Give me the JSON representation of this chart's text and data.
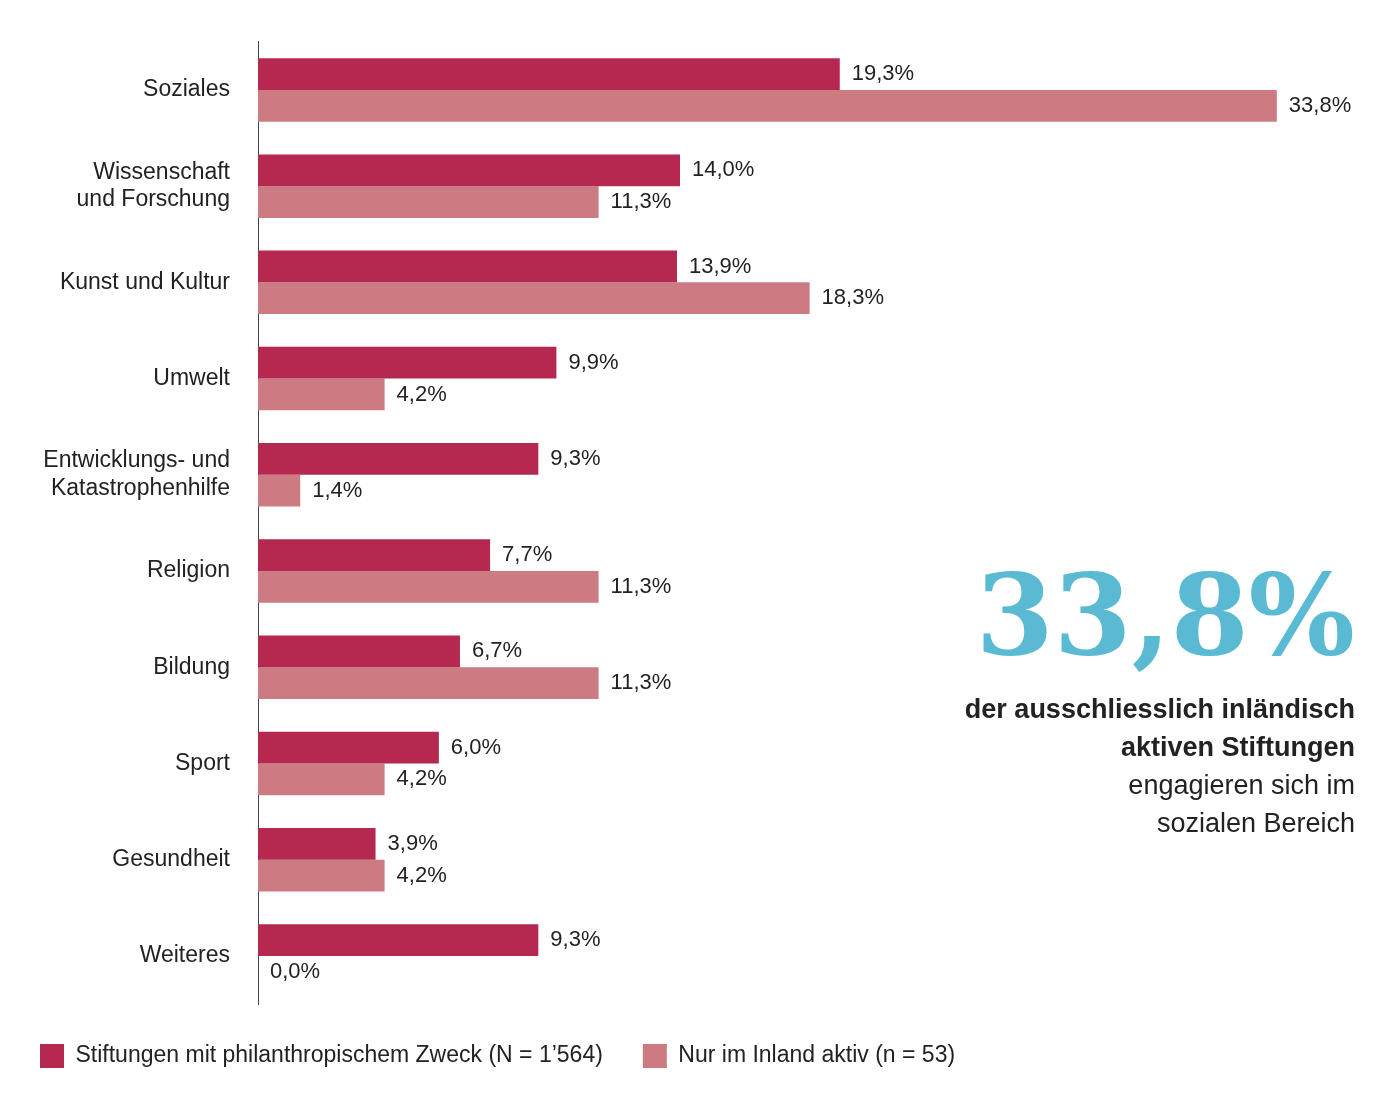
{
  "chart_data": {
    "type": "bar",
    "orientation": "horizontal",
    "categories": [
      "Soziales",
      "Wissenschaft\nund Forschung",
      "Kunst und Kultur",
      "Umwelt",
      "Entwicklungs- und\nKatastrophenhilfe",
      "Religion",
      "Bildung",
      "Sport",
      "Gesundheit",
      "Weiteres"
    ],
    "series": [
      {
        "name": "Stiftungen mit philanthropischem Zweck (N = 1’564)",
        "color": "#b5284f",
        "values": [
          19.3,
          14.0,
          13.9,
          9.9,
          9.3,
          7.7,
          6.7,
          6.0,
          3.9,
          9.3
        ],
        "value_labels": [
          "19,3%",
          "14,0%",
          "13,9%",
          "9,9%",
          "9,3%",
          "7,7%",
          "6,7%",
          "6,0%",
          "3,9%",
          "9,3%"
        ]
      },
      {
        "name": "Nur im Inland aktiv (n = 53)",
        "color": "#cd7b82",
        "values": [
          33.8,
          11.3,
          18.3,
          4.2,
          1.4,
          11.3,
          11.3,
          4.2,
          4.2,
          0.0
        ],
        "value_labels": [
          "33,8%",
          "11,3%",
          "18,3%",
          "4,2%",
          "1,4%",
          "11,3%",
          "11,3%",
          "4,2%",
          "4,2%",
          "0,0%"
        ]
      }
    ],
    "legend": "bottom",
    "grid": false,
    "tick_labels": "y",
    "annotations": [
      "33,8%",
      "der ausschliesslich inländisch aktiven Stiftungen",
      "engagieren sich im sozialen Bereich"
    ]
  }
}
